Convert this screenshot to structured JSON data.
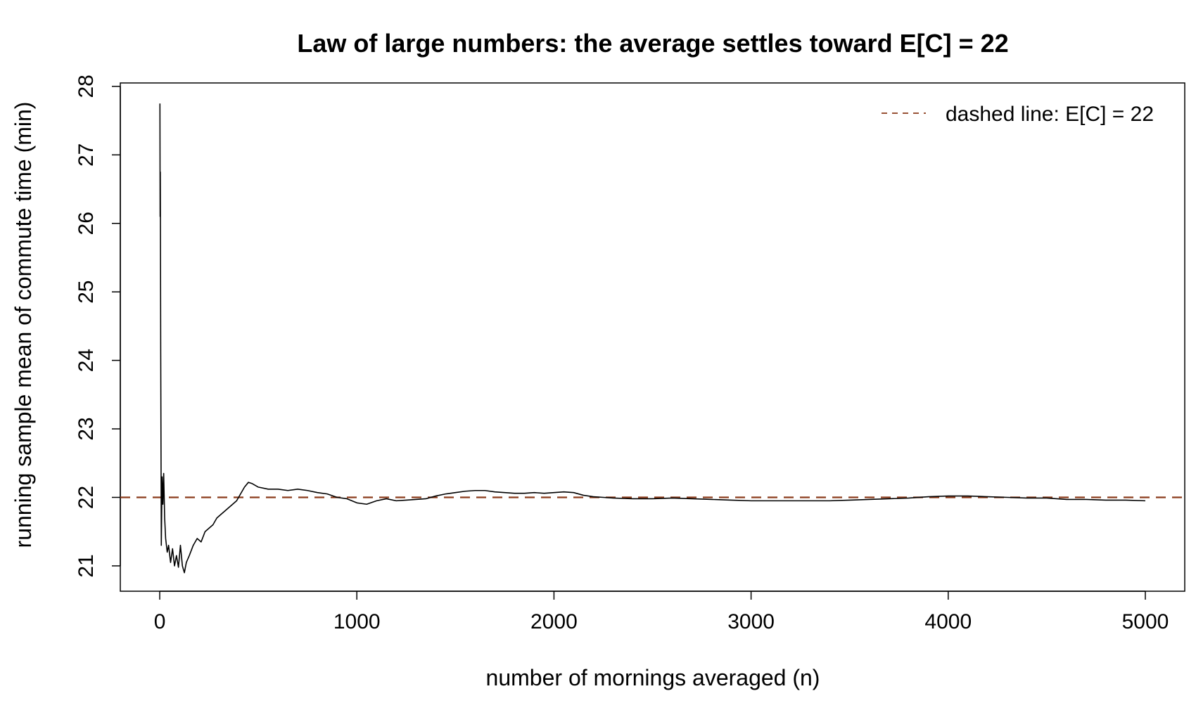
{
  "chart_data": {
    "type": "line",
    "title": "Law of large numbers: the average settles toward E[C] = 22",
    "xlabel": "number of mornings averaged (n)",
    "ylabel": "running sample mean of commute time (min)",
    "xlim": [
      -200,
      5200
    ],
    "ylim": [
      20.63,
      28.05
    ],
    "x_ticks": [
      0,
      1000,
      2000,
      3000,
      4000,
      5000
    ],
    "y_ticks": [
      21,
      22,
      23,
      24,
      25,
      26,
      27,
      28
    ],
    "grid": false,
    "legend": {
      "position": "top-right",
      "entries": [
        {
          "label": "dashed line: E[C] = 22",
          "style": "dashed",
          "color": "#8b3a1a"
        }
      ]
    },
    "reference_line": {
      "y": 22,
      "style": "dashed",
      "color": "#8b3a1a"
    },
    "series": [
      {
        "color": "#000000",
        "points": [
          [
            1,
            27.75
          ],
          [
            2,
            26.1
          ],
          [
            3,
            26.75
          ],
          [
            5,
            24.1
          ],
          [
            8,
            21.3
          ],
          [
            12,
            22.3
          ],
          [
            16,
            21.9
          ],
          [
            20,
            22.35
          ],
          [
            25,
            21.7
          ],
          [
            30,
            21.4
          ],
          [
            38,
            21.2
          ],
          [
            45,
            21.3
          ],
          [
            55,
            21.05
          ],
          [
            65,
            21.25
          ],
          [
            75,
            21.0
          ],
          [
            85,
            21.15
          ],
          [
            95,
            20.98
          ],
          [
            105,
            21.3
          ],
          [
            115,
            21.0
          ],
          [
            125,
            20.9
          ],
          [
            135,
            21.05
          ],
          [
            150,
            21.15
          ],
          [
            170,
            21.3
          ],
          [
            190,
            21.4
          ],
          [
            210,
            21.35
          ],
          [
            230,
            21.5
          ],
          [
            250,
            21.55
          ],
          [
            270,
            21.6
          ],
          [
            290,
            21.7
          ],
          [
            310,
            21.75
          ],
          [
            330,
            21.8
          ],
          [
            350,
            21.85
          ],
          [
            370,
            21.9
          ],
          [
            390,
            21.95
          ],
          [
            410,
            22.05
          ],
          [
            430,
            22.15
          ],
          [
            450,
            22.22
          ],
          [
            470,
            22.2
          ],
          [
            500,
            22.15
          ],
          [
            550,
            22.12
          ],
          [
            600,
            22.12
          ],
          [
            650,
            22.1
          ],
          [
            700,
            22.12
          ],
          [
            750,
            22.1
          ],
          [
            800,
            22.07
          ],
          [
            850,
            22.05
          ],
          [
            900,
            22.0
          ],
          [
            950,
            21.98
          ],
          [
            1000,
            21.92
          ],
          [
            1050,
            21.9
          ],
          [
            1100,
            21.95
          ],
          [
            1150,
            21.98
          ],
          [
            1200,
            21.95
          ],
          [
            1250,
            21.96
          ],
          [
            1300,
            21.97
          ],
          [
            1350,
            21.98
          ],
          [
            1400,
            22.02
          ],
          [
            1450,
            22.05
          ],
          [
            1500,
            22.07
          ],
          [
            1550,
            22.09
          ],
          [
            1600,
            22.1
          ],
          [
            1650,
            22.1
          ],
          [
            1700,
            22.08
          ],
          [
            1750,
            22.07
          ],
          [
            1800,
            22.06
          ],
          [
            1850,
            22.06
          ],
          [
            1900,
            22.07
          ],
          [
            1950,
            22.06
          ],
          [
            2000,
            22.07
          ],
          [
            2050,
            22.08
          ],
          [
            2100,
            22.07
          ],
          [
            2150,
            22.03
          ],
          [
            2200,
            22.01
          ],
          [
            2250,
            22.0
          ],
          [
            2300,
            21.99
          ],
          [
            2400,
            21.98
          ],
          [
            2500,
            21.98
          ],
          [
            2600,
            21.99
          ],
          [
            2700,
            21.98
          ],
          [
            2800,
            21.97
          ],
          [
            2900,
            21.96
          ],
          [
            3000,
            21.95
          ],
          [
            3100,
            21.95
          ],
          [
            3200,
            21.95
          ],
          [
            3300,
            21.95
          ],
          [
            3400,
            21.95
          ],
          [
            3500,
            21.96
          ],
          [
            3600,
            21.97
          ],
          [
            3700,
            21.98
          ],
          [
            3800,
            21.99
          ],
          [
            3900,
            22.01
          ],
          [
            4000,
            22.02
          ],
          [
            4100,
            22.02
          ],
          [
            4200,
            22.01
          ],
          [
            4300,
            22.0
          ],
          [
            4400,
            21.99
          ],
          [
            4500,
            21.99
          ],
          [
            4600,
            21.97
          ],
          [
            4700,
            21.97
          ],
          [
            4800,
            21.96
          ],
          [
            4900,
            21.96
          ],
          [
            5000,
            21.95
          ]
        ]
      }
    ]
  }
}
